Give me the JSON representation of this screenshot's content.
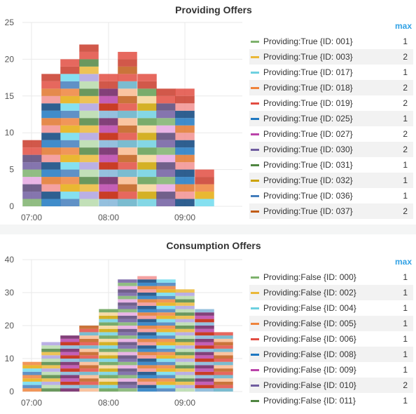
{
  "chart_data": [
    {
      "type": "bar",
      "stacked": true,
      "title": "Providing Offers",
      "x_ticks": [
        "07:00",
        "08:00",
        "09:00"
      ],
      "y_ticks": [
        0,
        5,
        10,
        15,
        20,
        25
      ],
      "ylim": [
        0,
        25
      ],
      "grid": true,
      "legend_position": "right",
      "legend_value_header": "max",
      "categories": [
        "06:50",
        "07:05",
        "07:20",
        "07:35",
        "07:50",
        "08:05",
        "08:20",
        "08:35",
        "08:50",
        "09:05",
        "09:20"
      ],
      "totals": [
        9,
        18,
        20,
        22,
        18,
        21,
        18,
        16,
        16,
        5,
        0
      ],
      "legend": [
        {
          "name": "Providing:True {ID: 001}",
          "max": "1",
          "color": "#7eb26d"
        },
        {
          "name": "Providing:True {ID: 003}",
          "max": "2",
          "color": "#eab839"
        },
        {
          "name": "Providing:True {ID: 017}",
          "max": "1",
          "color": "#6ed0e0"
        },
        {
          "name": "Providing:True {ID: 018}",
          "max": "2",
          "color": "#ef843c"
        },
        {
          "name": "Providing:True {ID: 019}",
          "max": "2",
          "color": "#e24d42"
        },
        {
          "name": "Providing:True {ID: 025}",
          "max": "1",
          "color": "#1f78c1"
        },
        {
          "name": "Providing:True {ID: 027}",
          "max": "2",
          "color": "#ba43a9"
        },
        {
          "name": "Providing:True {ID: 030}",
          "max": "2",
          "color": "#705da0"
        },
        {
          "name": "Providing:True {ID: 031}",
          "max": "1",
          "color": "#508642"
        },
        {
          "name": "Providing:True {ID: 032}",
          "max": "1",
          "color": "#cca300"
        },
        {
          "name": "Providing:True {ID: 036}",
          "max": "1",
          "color": "#447ebc"
        },
        {
          "name": "Providing:True {ID: 037}",
          "max": "2",
          "color": "#c15c17"
        }
      ]
    },
    {
      "type": "bar",
      "stacked": true,
      "title": "Consumption Offers",
      "x_ticks": [
        "07:00",
        "08:00",
        "09:00"
      ],
      "y_ticks": [
        0,
        10,
        20,
        30,
        40
      ],
      "ylim": [
        0,
        40
      ],
      "grid": true,
      "legend_position": "right",
      "legend_value_header": "max",
      "categories": [
        "06:50",
        "07:05",
        "07:20",
        "07:35",
        "07:50",
        "08:05",
        "08:20",
        "08:35",
        "08:50",
        "09:05",
        "09:20"
      ],
      "totals": [
        9,
        15,
        17,
        20,
        25,
        34,
        35,
        34,
        31,
        25,
        18
      ],
      "legend": [
        {
          "name": "Providing:False {ID: 000}",
          "max": "1",
          "color": "#7eb26d"
        },
        {
          "name": "Providing:False {ID: 002}",
          "max": "1",
          "color": "#eab839"
        },
        {
          "name": "Providing:False {ID: 004}",
          "max": "1",
          "color": "#6ed0e0"
        },
        {
          "name": "Providing:False {ID: 005}",
          "max": "1",
          "color": "#ef843c"
        },
        {
          "name": "Providing:False {ID: 006}",
          "max": "1",
          "color": "#e24d42"
        },
        {
          "name": "Providing:False {ID: 008}",
          "max": "1",
          "color": "#1f78c1"
        },
        {
          "name": "Providing:False {ID: 009}",
          "max": "1",
          "color": "#ba43a9"
        },
        {
          "name": "Providing:False {ID: 010}",
          "max": "2",
          "color": "#705da0"
        },
        {
          "name": "Providing:False {ID: 011}",
          "max": "1",
          "color": "#508642"
        }
      ]
    }
  ],
  "palette": [
    "#7eb26d",
    "#eab839",
    "#6ed0e0",
    "#ef843c",
    "#e24d42",
    "#1f78c1",
    "#ba43a9",
    "#705da0",
    "#508642",
    "#cca300",
    "#447ebc",
    "#c15c17",
    "#0a437c",
    "#6d1f62",
    "#584477",
    "#b7dbab",
    "#f4d598",
    "#70dbed",
    "#f9ba8f",
    "#f29191",
    "#82b5d8",
    "#e5a8e2",
    "#aea2e0",
    "#629e51",
    "#e5ac0e",
    "#64b0c8",
    "#e0752d",
    "#bf1b00"
  ],
  "top_palette": [
    "#c93b2a",
    "#e24d42"
  ]
}
